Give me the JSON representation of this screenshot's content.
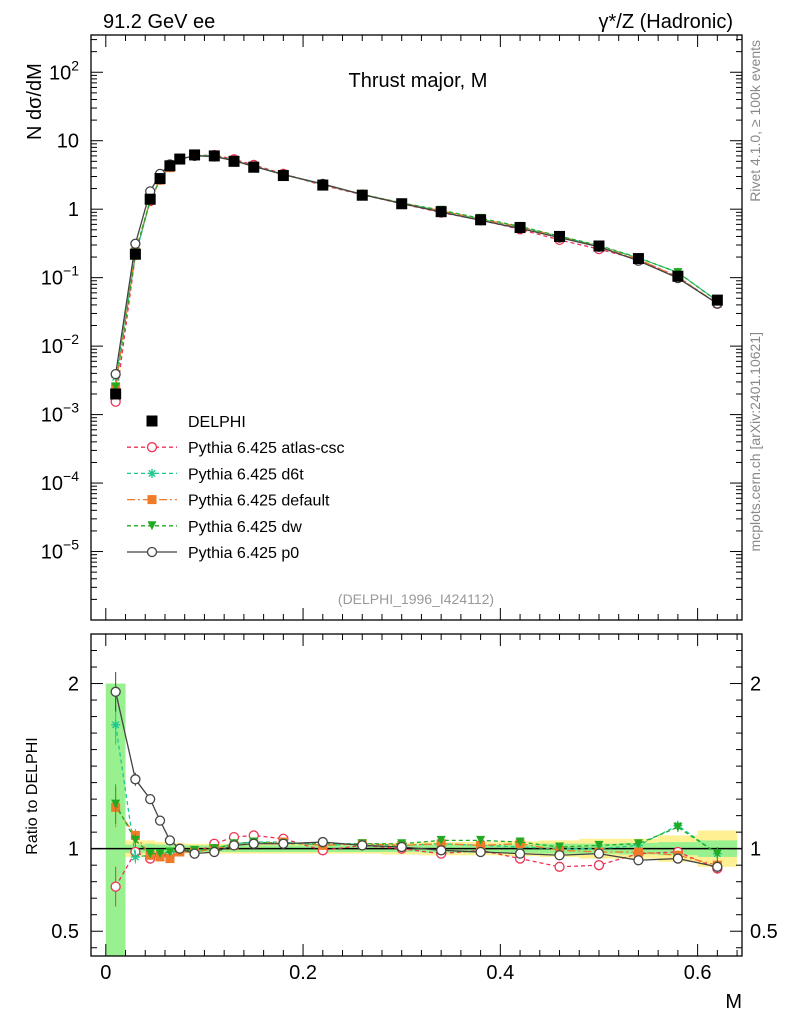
{
  "header": {
    "left": "91.2 GeV ee",
    "right": "γ*/Z (Hadronic)"
  },
  "side_labels": {
    "events": "Rivet 4.1.0, ≥ 100k events",
    "site": "mcplots.cern.ch [arXiv:2401.10621]"
  },
  "chart_data": {
    "type": "line",
    "title": "Thrust major, M",
    "watermark": "(DELPHI_1996_I424112)",
    "xlabel": "M",
    "ylabel_main": "N  dσ/dM",
    "ylabel_ratio": "Ratio to DELPHI",
    "xlim": [
      -0.015,
      0.645
    ],
    "ylim_main": [
      1e-06,
      350
    ],
    "ylim_ratio": [
      0.35,
      2.3
    ],
    "x_ticks": [
      0,
      0.2,
      0.4,
      0.6
    ],
    "x_tick_labels": [
      "0",
      "0.2",
      "0.4",
      "0.6"
    ],
    "y_ticks_main": [
      {
        "v": 1e-05,
        "m": "10",
        "e": "−5"
      },
      {
        "v": 0.0001,
        "m": "10",
        "e": "−4"
      },
      {
        "v": 0.001,
        "m": "10",
        "e": "−3"
      },
      {
        "v": 0.01,
        "m": "10",
        "e": "−2"
      },
      {
        "v": 0.1,
        "m": "10",
        "e": "−1"
      },
      {
        "v": 1,
        "m": "1",
        "e": ""
      },
      {
        "v": 10,
        "m": "10",
        "e": ""
      },
      {
        "v": 100,
        "m": "10",
        "e": "2"
      }
    ],
    "y_ticks_ratio": [
      0.5,
      1,
      2
    ],
    "y_tick_labels_ratio": [
      "0.5",
      "1",
      "2"
    ],
    "x": [
      0.01,
      0.03,
      0.045,
      0.055,
      0.065,
      0.075,
      0.09,
      0.11,
      0.13,
      0.15,
      0.18,
      0.22,
      0.26,
      0.3,
      0.34,
      0.38,
      0.42,
      0.46,
      0.5,
      0.54,
      0.58,
      0.62
    ],
    "x_bin_edges": [
      0.0,
      0.02,
      0.04,
      0.05,
      0.06,
      0.07,
      0.08,
      0.1,
      0.12,
      0.14,
      0.16,
      0.2,
      0.24,
      0.28,
      0.32,
      0.36,
      0.4,
      0.44,
      0.48,
      0.52,
      0.56,
      0.6,
      0.64
    ],
    "data_series": {
      "name": "DELPHI",
      "color": "#000000",
      "values": [
        0.002,
        0.22,
        1.4,
        2.8,
        4.3,
        5.4,
        6.2,
        6.0,
        5.0,
        4.1,
        3.1,
        2.25,
        1.6,
        1.2,
        0.92,
        0.7,
        0.54,
        0.4,
        0.29,
        0.19,
        0.105,
        0.047
      ],
      "band_inner": [
        1.0,
        0.025,
        0.03,
        0.025,
        0.025,
        0.025,
        0.02,
        0.02,
        0.02,
        0.02,
        0.02,
        0.02,
        0.02,
        0.02,
        0.025,
        0.025,
        0.025,
        0.03,
        0.03,
        0.035,
        0.04,
        0.05
      ],
      "band_outer": [
        1.0,
        0.05,
        0.05,
        0.04,
        0.035,
        0.035,
        0.03,
        0.03,
        0.03,
        0.03,
        0.03,
        0.03,
        0.03,
        0.035,
        0.04,
        0.04,
        0.045,
        0.05,
        0.06,
        0.06,
        0.08,
        0.11
      ]
    },
    "series": [
      {
        "name": "Pythia 6.425 atlas-csc",
        "color": "#ee3355",
        "dash": "4,3",
        "marker": "open-circle",
        "ratio": [
          0.77,
          0.98,
          0.94,
          0.96,
          0.96,
          0.99,
          0.97,
          1.03,
          1.07,
          1.08,
          1.06,
          0.99,
          1.02,
          1.0,
          0.97,
          0.99,
          0.94,
          0.89,
          0.9,
          0.97,
          0.98,
          0.88
        ],
        "ratio_err": [
          0.12,
          0.03,
          0.02,
          0.015,
          0.015,
          0.01,
          0.01,
          0.01,
          0.01,
          0.01,
          0.01,
          0.01,
          0.01,
          0.01,
          0.01,
          0.01,
          0.01,
          0.015,
          0.015,
          0.02,
          0.03,
          0.03
        ]
      },
      {
        "name": "Pythia 6.425 d6t",
        "color": "#1fc890",
        "dash": "4,3",
        "marker": "star",
        "ratio": [
          1.75,
          0.95,
          0.96,
          0.96,
          0.98,
          0.99,
          0.98,
          1.0,
          1.03,
          1.04,
          1.04,
          1.02,
          1.03,
          1.02,
          1.03,
          1.02,
          1.01,
          1.0,
          1.0,
          1.02,
          1.14,
          0.97
        ],
        "ratio_err": [
          0.12,
          0.04,
          0.02,
          0.015,
          0.015,
          0.01,
          0.01,
          0.01,
          0.01,
          0.01,
          0.01,
          0.01,
          0.01,
          0.01,
          0.01,
          0.01,
          0.01,
          0.015,
          0.015,
          0.02,
          0.03,
          0.04
        ]
      },
      {
        "name": "Pythia 6.425 default",
        "color": "#f07a28",
        "dash": "8,3,2,3",
        "marker": "square",
        "ratio": [
          1.25,
          1.08,
          0.96,
          0.95,
          0.94,
          0.98,
          0.98,
          1.0,
          1.02,
          1.03,
          1.04,
          1.02,
          1.03,
          1.02,
          1.03,
          1.02,
          1.03,
          0.99,
          0.98,
          0.98,
          0.96,
          0.9
        ],
        "ratio_err": [
          0.12,
          0.04,
          0.02,
          0.015,
          0.015,
          0.01,
          0.01,
          0.01,
          0.01,
          0.01,
          0.01,
          0.01,
          0.01,
          0.01,
          0.01,
          0.01,
          0.01,
          0.015,
          0.015,
          0.02,
          0.03,
          0.03
        ]
      },
      {
        "name": "Pythia 6.425 dw",
        "color": "#22aa22",
        "dash": "4,3",
        "marker": "down-triangle",
        "ratio": [
          1.27,
          1.05,
          0.97,
          0.97,
          0.98,
          0.99,
          0.99,
          1.0,
          1.03,
          1.04,
          1.03,
          1.03,
          1.03,
          1.03,
          1.05,
          1.05,
          1.04,
          1.01,
          1.02,
          1.03,
          1.13,
          0.97
        ],
        "ratio_err": [
          0.12,
          0.04,
          0.02,
          0.015,
          0.015,
          0.01,
          0.01,
          0.01,
          0.01,
          0.01,
          0.01,
          0.01,
          0.01,
          0.01,
          0.01,
          0.01,
          0.01,
          0.015,
          0.015,
          0.02,
          0.03,
          0.04
        ]
      },
      {
        "name": "Pythia 6.425 p0",
        "color": "#444444",
        "dash": "",
        "marker": "open-circle",
        "ratio": [
          1.95,
          1.42,
          1.3,
          1.17,
          1.05,
          1.0,
          0.97,
          0.98,
          1.02,
          1.03,
          1.03,
          1.04,
          1.02,
          1.01,
          0.99,
          0.98,
          0.97,
          0.96,
          0.97,
          0.93,
          0.94,
          0.89
        ],
        "ratio_err": [
          0.12,
          0.04,
          0.02,
          0.015,
          0.015,
          0.01,
          0.01,
          0.01,
          0.01,
          0.01,
          0.01,
          0.01,
          0.01,
          0.01,
          0.01,
          0.01,
          0.01,
          0.015,
          0.015,
          0.02,
          0.03,
          0.04
        ]
      }
    ]
  }
}
